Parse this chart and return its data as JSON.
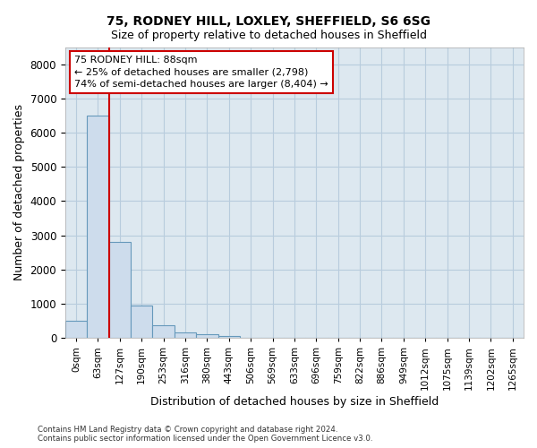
{
  "title1": "75, RODNEY HILL, LOXLEY, SHEFFIELD, S6 6SG",
  "title2": "Size of property relative to detached houses in Sheffield",
  "xlabel": "Distribution of detached houses by size in Sheffield",
  "ylabel": "Number of detached properties",
  "bar_categories": [
    "0sqm",
    "63sqm",
    "127sqm",
    "190sqm",
    "253sqm",
    "316sqm",
    "380sqm",
    "443sqm",
    "506sqm",
    "569sqm",
    "633sqm",
    "696sqm",
    "759sqm",
    "822sqm",
    "886sqm",
    "949sqm",
    "1012sqm",
    "1075sqm",
    "1139sqm",
    "1202sqm",
    "1265sqm"
  ],
  "bar_values": [
    500,
    6500,
    2800,
    950,
    380,
    170,
    100,
    50,
    0,
    0,
    0,
    0,
    0,
    0,
    0,
    0,
    0,
    0,
    0,
    0,
    0
  ],
  "bar_color": "#cddcec",
  "bar_edge_color": "#6699bb",
  "grid_color": "#b8ccdd",
  "background_color": "#dde8f0",
  "annotation_text_line1": "75 RODNEY HILL: 88sqm",
  "annotation_text_line2": "← 25% of detached houses are smaller (2,798)",
  "annotation_text_line3": "74% of semi-detached houses are larger (8,404) →",
  "annotation_box_color": "#ffffff",
  "annotation_box_edge_color": "#cc0000",
  "vline_color": "#cc0000",
  "vline_x_bar_idx": 1.5,
  "ylim": [
    0,
    8500
  ],
  "yticks": [
    0,
    1000,
    2000,
    3000,
    4000,
    5000,
    6000,
    7000,
    8000
  ],
  "footnote": "Contains HM Land Registry data © Crown copyright and database right 2024.\nContains public sector information licensed under the Open Government Licence v3.0."
}
